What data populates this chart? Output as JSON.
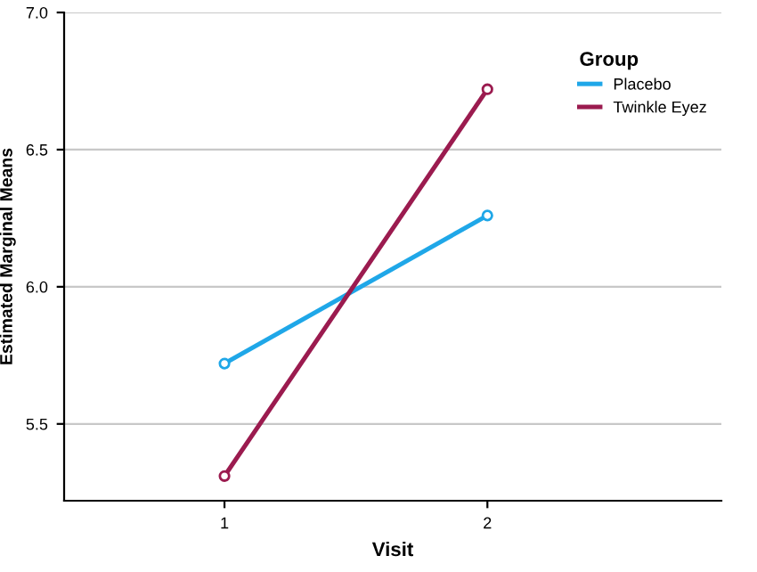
{
  "chart_data": {
    "type": "line",
    "xlabel": "Visit",
    "ylabel": "Estimated Marginal Means",
    "legend_title": "Group",
    "x": [
      1,
      2
    ],
    "series": [
      {
        "name": "Placebo",
        "color": "#1fa7e8",
        "values": [
          5.72,
          6.26
        ]
      },
      {
        "name": "Twinkle Eyez",
        "color": "#9b1b4f",
        "values": [
          5.31,
          6.72
        ]
      }
    ],
    "xlim": [
      0.39,
      2.89
    ],
    "xticks": [
      1,
      2
    ],
    "ylim": [
      5.22,
      7.0
    ],
    "yticks": [
      {
        "value": 5.5,
        "label": "5.5"
      },
      {
        "value": 6.0,
        "label": "6.0"
      },
      {
        "value": 6.5,
        "label": "6.5"
      },
      {
        "value": 7.0,
        "label": "7.0"
      }
    ],
    "grid": "y",
    "legend": "top right",
    "marker": "circle",
    "line_style": "solid"
  }
}
